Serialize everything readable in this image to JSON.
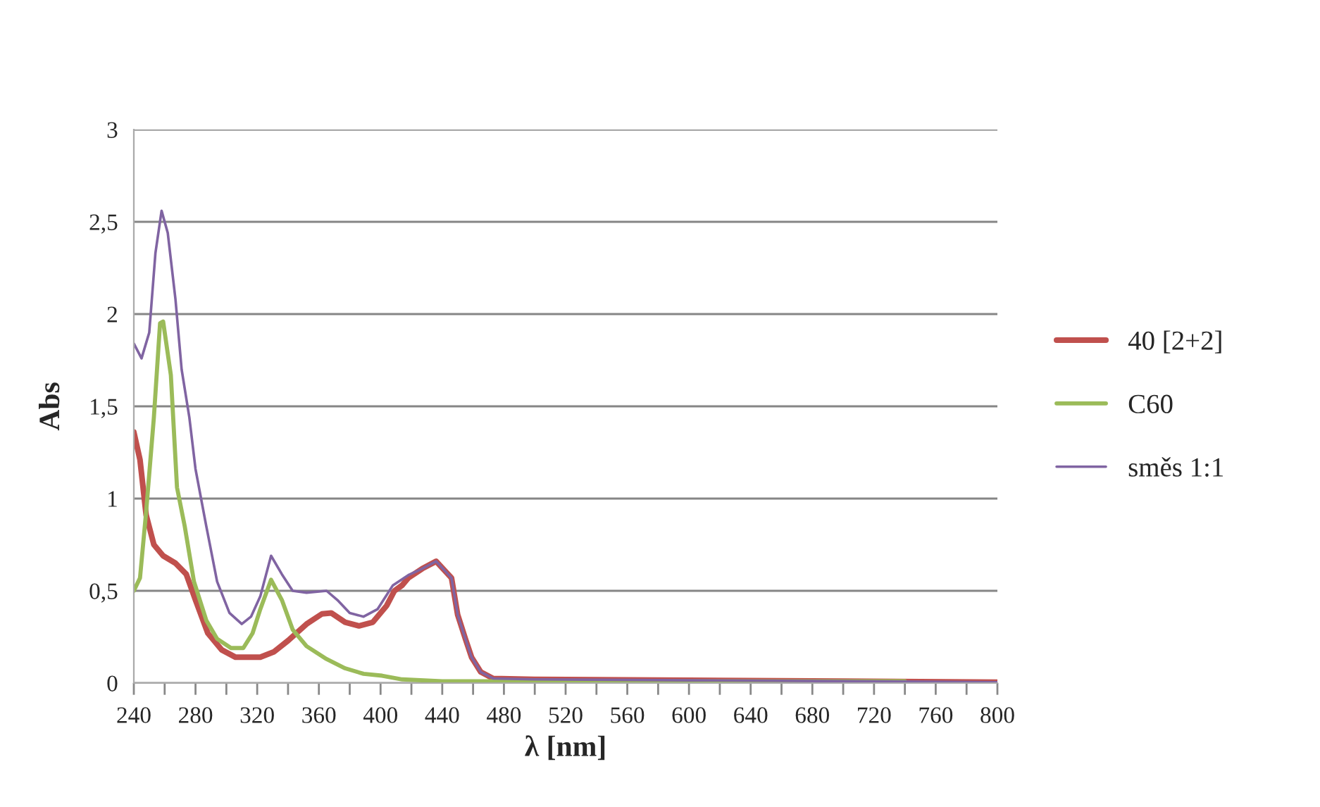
{
  "chart_data": {
    "type": "line",
    "xlabel": "λ [nm]",
    "ylabel": "Abs",
    "xlim": [
      240,
      800
    ],
    "xticks": [
      240,
      {
        "value": 260,
        "label": null
      },
      280,
      {
        "value": 300,
        "label": null
      },
      320,
      {
        "value": 340,
        "label": null
      },
      360,
      {
        "value": 380,
        "label": null
      },
      400,
      {
        "value": 420,
        "label": null
      },
      440,
      {
        "value": 460,
        "label": null
      },
      480,
      {
        "value": 500,
        "label": null
      },
      520,
      {
        "value": 540,
        "label": null
      },
      560,
      {
        "value": 580,
        "label": null
      },
      600,
      {
        "value": 620,
        "label": null
      },
      640,
      {
        "value": 660,
        "label": null
      },
      680,
      {
        "value": 700,
        "label": null
      },
      720,
      {
        "value": 740,
        "label": null
      },
      760,
      {
        "value": 780,
        "label": null
      },
      800
    ],
    "ylim": [
      0,
      3
    ],
    "yticks": [
      0,
      {
        "value": 0.5,
        "label": "0,5"
      },
      1,
      {
        "value": 1.5,
        "label": "1,5"
      },
      2,
      {
        "value": 2.5,
        "label": "2,5"
      },
      3
    ],
    "grid": "y",
    "legend": "right",
    "marker": "none",
    "line_style": "solid",
    "series": [
      {
        "name": "40 [2+2]",
        "color": "#c0504d",
        "x": [
          240,
          244,
          248,
          253,
          259,
          267,
          274,
          280,
          288,
          297,
          306,
          322,
          331,
          340,
          352,
          362,
          368,
          377,
          386,
          395,
          404,
          409,
          414,
          418,
          427,
          436,
          446,
          450,
          455,
          459,
          465,
          473,
          500,
          600,
          700,
          800
        ],
        "values": [
          1.36,
          1.21,
          0.91,
          0.75,
          0.69,
          0.65,
          0.59,
          0.45,
          0.27,
          0.18,
          0.14,
          0.14,
          0.17,
          0.23,
          0.32,
          0.375,
          0.38,
          0.33,
          0.31,
          0.33,
          0.42,
          0.5,
          0.53,
          0.57,
          0.62,
          0.66,
          0.57,
          0.37,
          0.24,
          0.14,
          0.06,
          0.025,
          0.02,
          0.015,
          0.01,
          0.005
        ]
      },
      {
        "name": "C60",
        "color": "#9bbb59",
        "x": [
          240,
          244,
          248,
          253,
          257,
          259,
          264,
          268,
          273,
          279,
          287,
          294,
          303,
          311,
          317,
          322,
          329,
          336,
          343,
          352,
          365,
          377,
          389,
          401,
          414,
          440,
          500,
          600,
          700,
          740
        ],
        "values": [
          0.5,
          0.57,
          0.93,
          1.44,
          1.95,
          1.96,
          1.67,
          1.06,
          0.85,
          0.55,
          0.34,
          0.24,
          0.19,
          0.19,
          0.27,
          0.4,
          0.56,
          0.45,
          0.29,
          0.2,
          0.13,
          0.08,
          0.05,
          0.04,
          0.02,
          0.01,
          0.01,
          0.01,
          0.01,
          0.01
        ]
      },
      {
        "name": "směs 1:1",
        "color": "#8064a2",
        "x": [
          240,
          245,
          250,
          254,
          258,
          262,
          267,
          271,
          276,
          280,
          287,
          294,
          302,
          310,
          316,
          322,
          329,
          336,
          343,
          352,
          365,
          372,
          380,
          389,
          398,
          408,
          418,
          427,
          436,
          446,
          450,
          455,
          459,
          465,
          473,
          500,
          600,
          700,
          800
        ],
        "values": [
          1.84,
          1.76,
          1.9,
          2.33,
          2.56,
          2.44,
          2.08,
          1.7,
          1.44,
          1.16,
          0.85,
          0.55,
          0.38,
          0.32,
          0.36,
          0.47,
          0.69,
          0.59,
          0.5,
          0.49,
          0.5,
          0.45,
          0.38,
          0.36,
          0.4,
          0.53,
          0.585,
          0.62,
          0.66,
          0.57,
          0.37,
          0.24,
          0.14,
          0.06,
          0.025,
          0.02,
          0.015,
          0.01,
          0.005
        ]
      }
    ]
  }
}
